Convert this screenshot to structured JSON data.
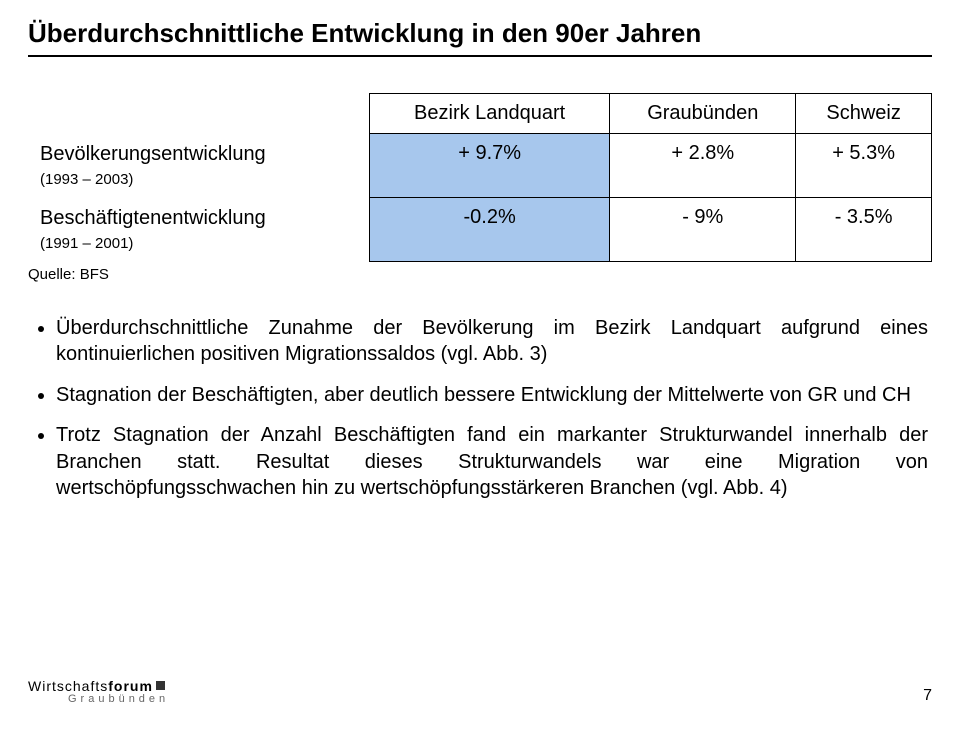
{
  "title": "Überdurchschnittliche Entwicklung in den 90er Jahren",
  "table": {
    "headers": [
      "Bezirk Landquart",
      "Graubünden",
      "Schweiz"
    ],
    "rows": [
      {
        "label": "Bevölkerungsentwicklung",
        "sub": "(1993 – 2003)",
        "values": [
          "+ 9.7%",
          "+ 2.8%",
          "+ 5.3%"
        ]
      },
      {
        "label": "Beschäftigtenentwicklung",
        "sub": "(1991 – 2001)",
        "values": [
          "-0.2%",
          "- 9%",
          "- 3.5%"
        ]
      }
    ],
    "source": "Quelle: BFS"
  },
  "bullets": [
    "Überdurchschnittliche Zunahme der Bevölkerung im Bezirk Landquart aufgrund eines kontinuierlichen positiven Migrationssaldos (vgl. Abb. 3)",
    "Stagnation der Beschäftigten, aber deutlich bessere Entwicklung der Mittelwerte von GR und CH",
    "Trotz Stagnation der Anzahl Beschäftigten fand ein markanter Strukturwandel innerhalb der Branchen statt. Resultat dieses Strukturwandels war eine Migration von wertschöpfungsschwachen hin zu wertschöpfungsstärkeren Branchen (vgl. Abb. 4)"
  ],
  "logo": {
    "part1": "Wirtschafts",
    "part2": "forum",
    "sub": "Graubünden"
  },
  "page_number": "7",
  "style": {
    "highlight_bg": "#a7c7ed",
    "title_fontsize": 26,
    "body_fontsize": 20,
    "sub_fontsize": 15
  }
}
